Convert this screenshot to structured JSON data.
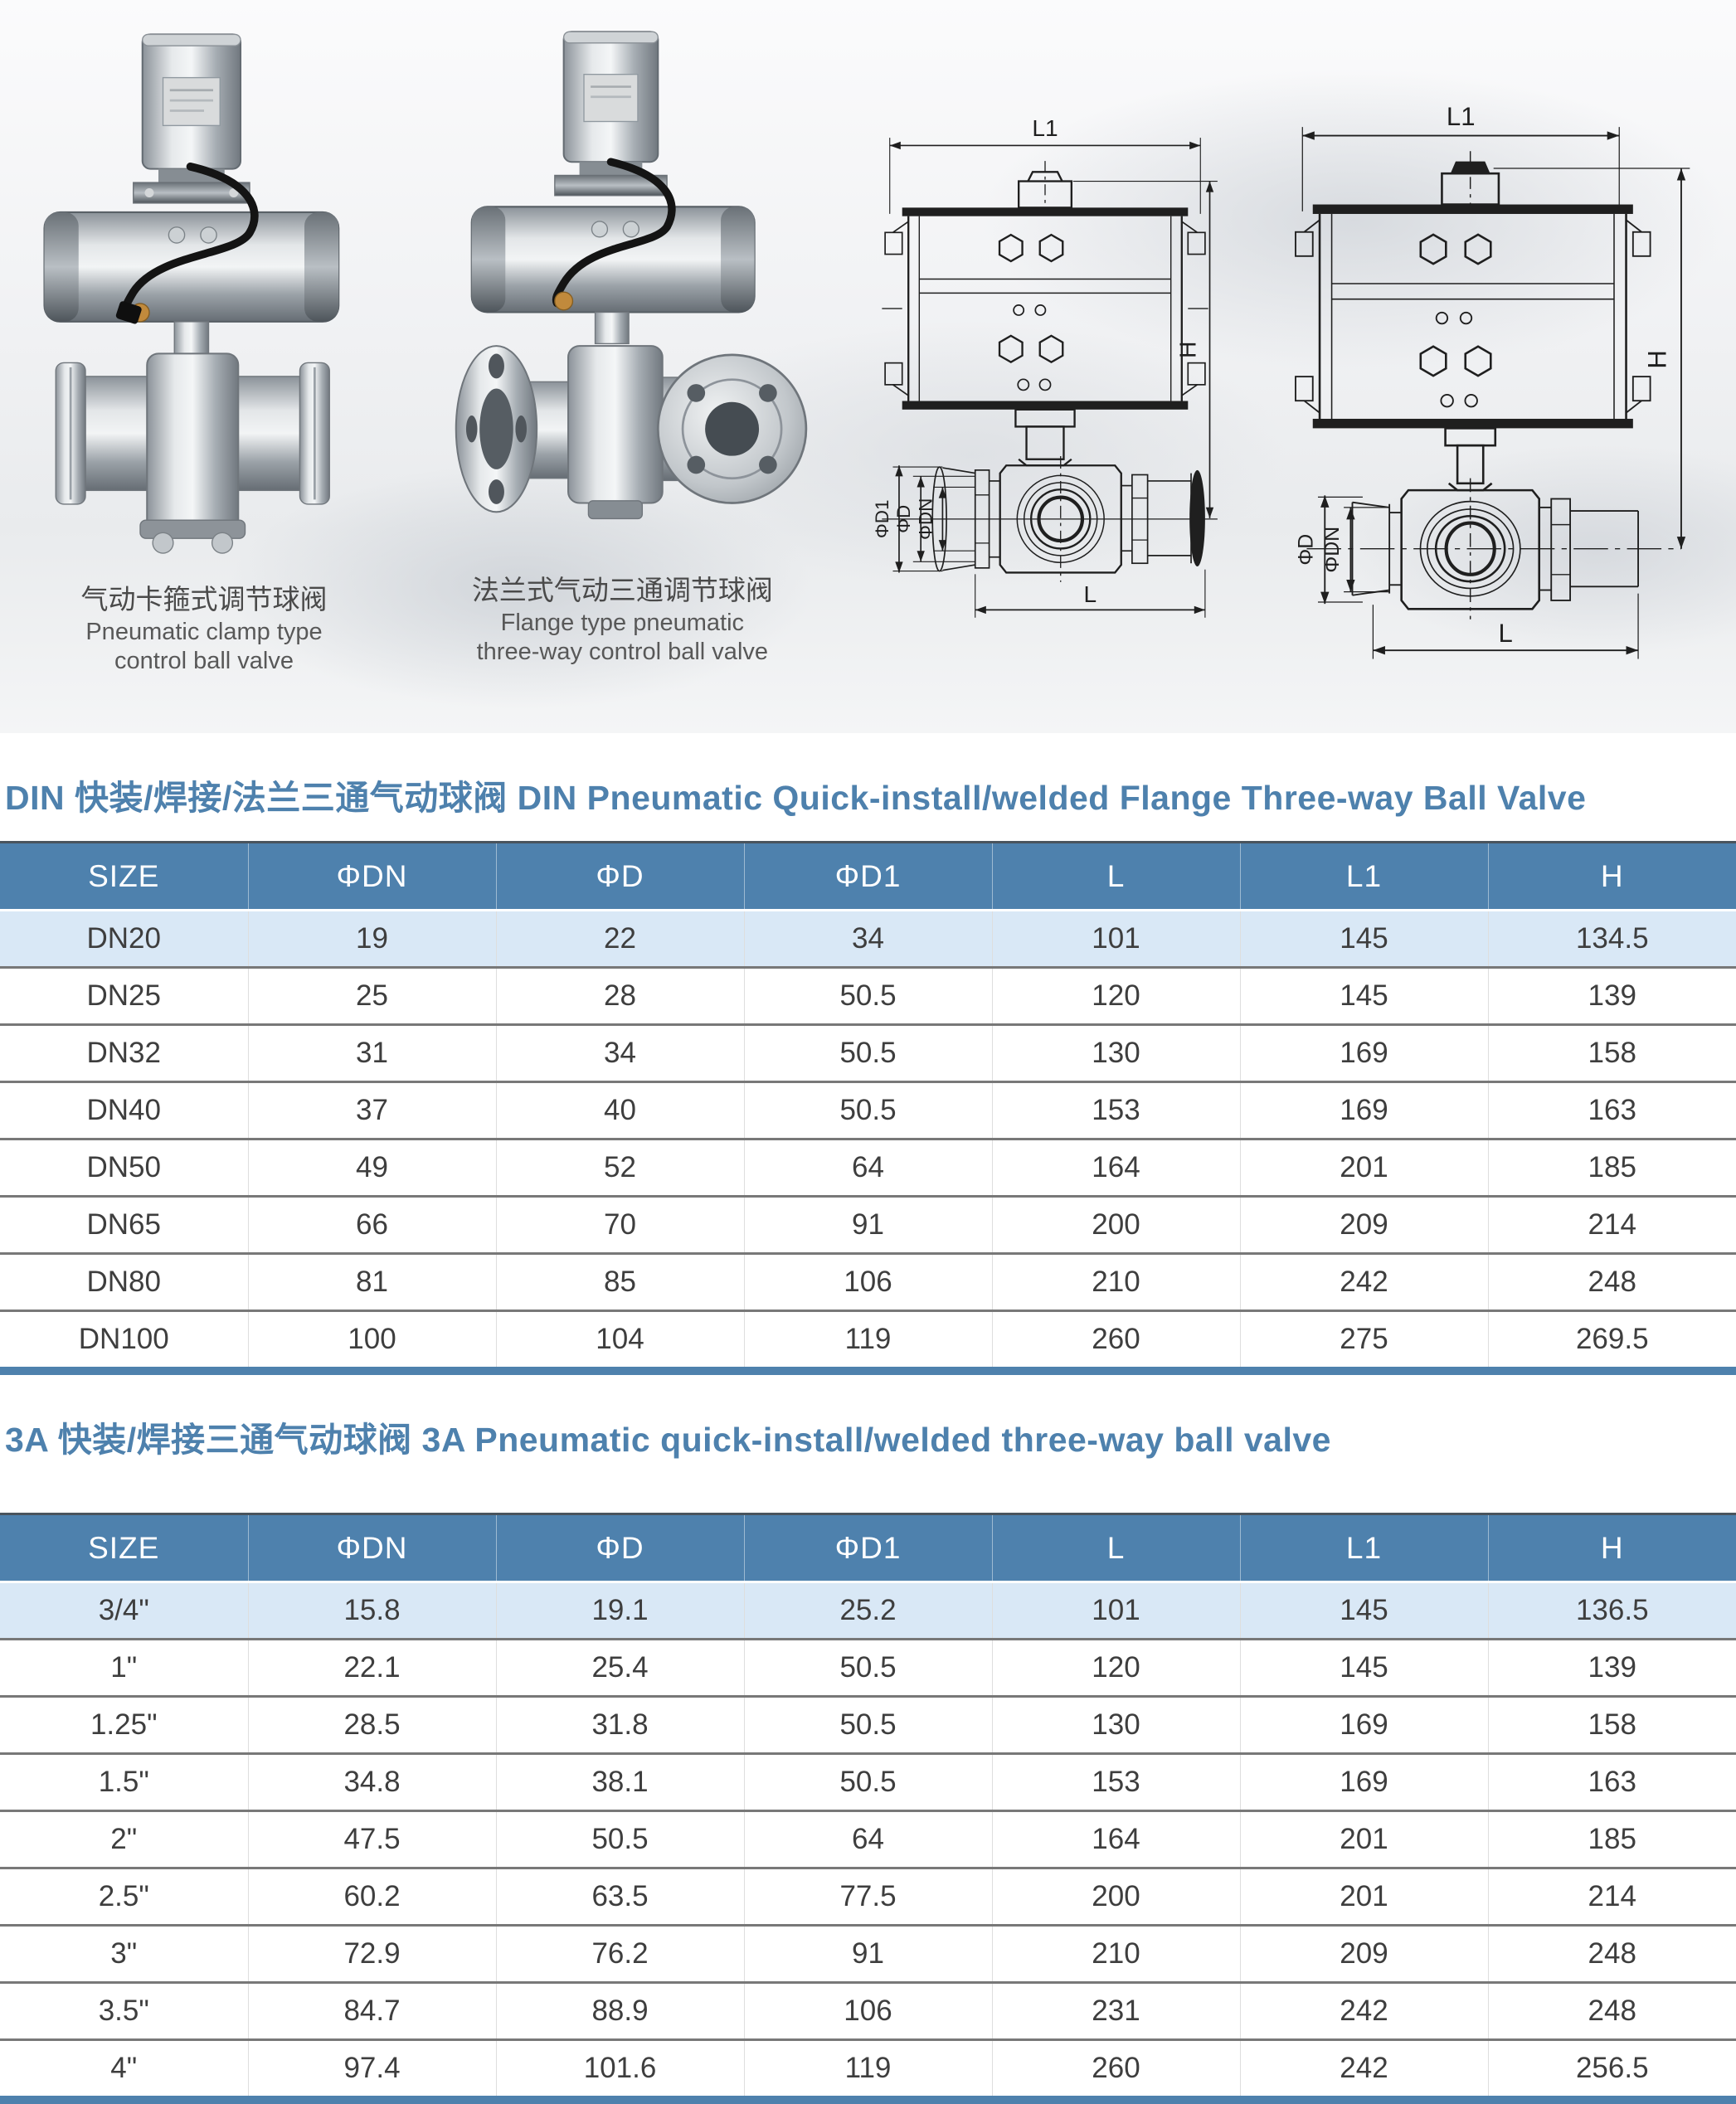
{
  "colors": {
    "accent_blue": "#4e81ad",
    "header_bg": "#4e81ad",
    "highlight_row_bg": "#d9e8f6",
    "row_separator": "#787878",
    "table_bottom_bar": "#4e81ad"
  },
  "hero": {
    "photos": [
      {
        "caption_zh": "气动卡箍式调节球阀",
        "caption_en1": "Pneumatic clamp type",
        "caption_en2": "control ball valve"
      },
      {
        "caption_zh": "法兰式气动三通调节球阀",
        "caption_en1": "Flange type pneumatic",
        "caption_en2": "three-way control ball valve"
      }
    ],
    "drawing_labels": {
      "l1": "L1",
      "h": "H",
      "l": "L",
      "d1": "ΦD1",
      "d": "ΦD",
      "dn": "ΦDN"
    }
  },
  "tables": [
    {
      "title": "DIN 快装/焊接/法兰三通气动球阀 DIN Pneumatic Quick-install/welded Flange Three-way Ball Valve",
      "headers": [
        "SIZE",
        "ΦDN",
        "ΦD",
        "ΦD1",
        "L",
        "L1",
        "H"
      ],
      "rows": [
        [
          "DN20",
          "19",
          "22",
          "34",
          "101",
          "145",
          "134.5"
        ],
        [
          "DN25",
          "25",
          "28",
          "50.5",
          "120",
          "145",
          "139"
        ],
        [
          "DN32",
          "31",
          "34",
          "50.5",
          "130",
          "169",
          "158"
        ],
        [
          "DN40",
          "37",
          "40",
          "50.5",
          "153",
          "169",
          "163"
        ],
        [
          "DN50",
          "49",
          "52",
          "64",
          "164",
          "201",
          "185"
        ],
        [
          "DN65",
          "66",
          "70",
          "91",
          "200",
          "209",
          "214"
        ],
        [
          "DN80",
          "81",
          "85",
          "106",
          "210",
          "242",
          "248"
        ],
        [
          "DN100",
          "100",
          "104",
          "119",
          "260",
          "275",
          "269.5"
        ]
      ]
    },
    {
      "title": "3A 快装/焊接三通气动球阀 3A Pneumatic quick-install/welded three-way ball valve",
      "headers": [
        "SIZE",
        "ΦDN",
        "ΦD",
        "ΦD1",
        "L",
        "L1",
        "H"
      ],
      "rows": [
        [
          "3/4\"",
          "15.8",
          "19.1",
          "25.2",
          "101",
          "145",
          "136.5"
        ],
        [
          "1\"",
          "22.1",
          "25.4",
          "50.5",
          "120",
          "145",
          "139"
        ],
        [
          "1.25\"",
          "28.5",
          "31.8",
          "50.5",
          "130",
          "169",
          "158"
        ],
        [
          "1.5\"",
          "34.8",
          "38.1",
          "50.5",
          "153",
          "169",
          "163"
        ],
        [
          "2\"",
          "47.5",
          "50.5",
          "64",
          "164",
          "201",
          "185"
        ],
        [
          "2.5\"",
          "60.2",
          "63.5",
          "77.5",
          "200",
          "201",
          "214"
        ],
        [
          "3\"",
          "72.9",
          "76.2",
          "91",
          "210",
          "209",
          "248"
        ],
        [
          "3.5\"",
          "84.7",
          "88.9",
          "106",
          "231",
          "242",
          "248"
        ],
        [
          "4\"",
          "97.4",
          "101.6",
          "119",
          "260",
          "242",
          "256.5"
        ]
      ]
    }
  ]
}
